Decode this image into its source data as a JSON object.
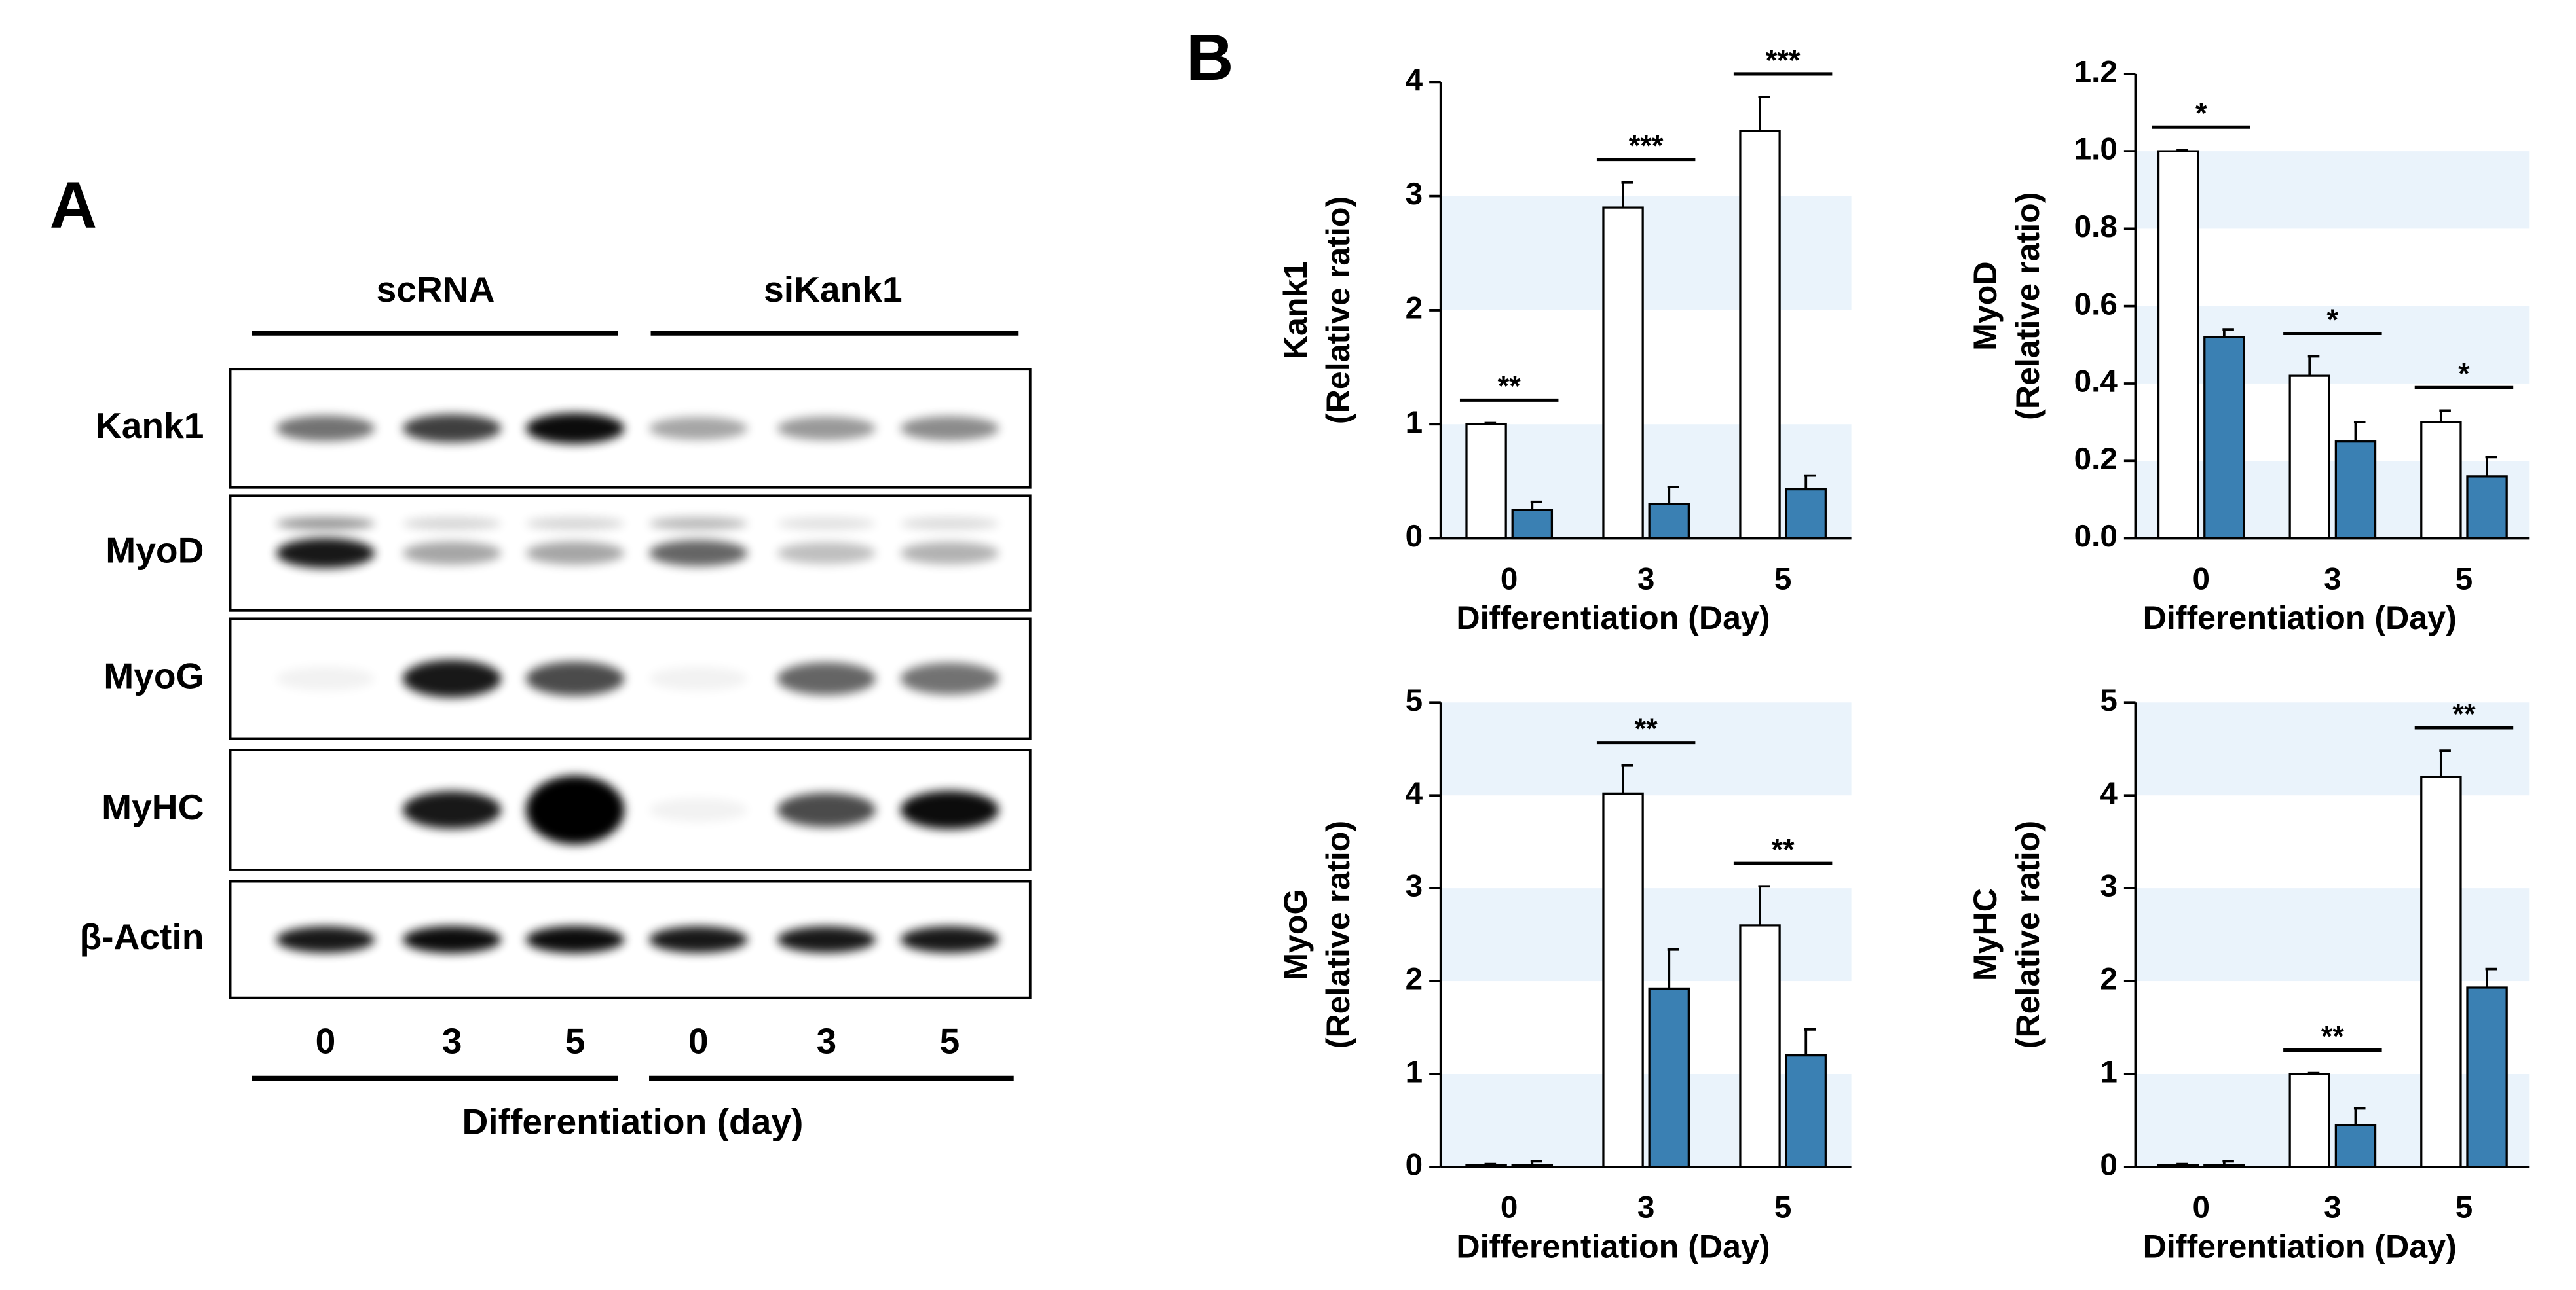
{
  "panels": [
    "A",
    "B"
  ],
  "blot": {
    "groups": [
      "scRNA",
      "siKank1"
    ],
    "rows": [
      "Kank1",
      "MyoD",
      "MyoG",
      "MyHC",
      "β-Actin"
    ],
    "days": [
      "0",
      "3",
      "5",
      "0",
      "3",
      "5"
    ],
    "xlabel": "Differentiation (day)"
  },
  "chart_data": [
    {
      "type": "bar",
      "ylabel": [
        "Kank1",
        "(Relative ratio)"
      ],
      "xlabel": "Differentiation (Day)",
      "categories": [
        "0",
        "3",
        "5"
      ],
      "ylim": [
        0,
        4
      ],
      "yticks": [
        0,
        1,
        2,
        3,
        4
      ],
      "bands": true,
      "band_color": "#eaf3fb",
      "series": [
        {
          "color": "#ffffff",
          "values": [
            1.0,
            2.9,
            3.57
          ],
          "errors": [
            0.01,
            0.22,
            0.3
          ]
        },
        {
          "color": "#3a80b3",
          "values": [
            0.25,
            0.3,
            0.43
          ],
          "errors": [
            0.07,
            0.15,
            0.12
          ]
        }
      ],
      "annotations": [
        {
          "text": "**",
          "category": "0"
        },
        {
          "text": "***",
          "category": "3"
        },
        {
          "text": "***",
          "category": "5"
        }
      ]
    },
    {
      "type": "bar",
      "ylabel": [
        "MyoD",
        "(Relative ratio)"
      ],
      "xlabel": "Differentiation (Day)",
      "categories": [
        "0",
        "3",
        "5"
      ],
      "ylim": [
        0,
        1.2
      ],
      "yticks": [
        {
          "value": 0,
          "label": "0.0"
        },
        0.2,
        0.4,
        0.6,
        0.8,
        {
          "value": 1,
          "label": "1.0"
        },
        1.2
      ],
      "bands": true,
      "band_color": "#eaf3fb",
      "series": [
        {
          "color": "#ffffff",
          "values": [
            1.0,
            0.42,
            0.3
          ],
          "errors": [
            0.003,
            0.05,
            0.03
          ]
        },
        {
          "color": "#3a80b3",
          "values": [
            0.52,
            0.25,
            0.16
          ],
          "errors": [
            0.02,
            0.05,
            0.05
          ]
        }
      ],
      "annotations": [
        {
          "text": "*",
          "category": "0"
        },
        {
          "text": "*",
          "category": "3"
        },
        {
          "text": "*",
          "category": "5"
        }
      ]
    },
    {
      "type": "bar",
      "ylabel": [
        "MyoG",
        "(Relative ratio)"
      ],
      "xlabel": "Differentiation (Day)",
      "categories": [
        "0",
        "3",
        "5"
      ],
      "ylim": [
        0,
        5
      ],
      "yticks": [
        0,
        1,
        2,
        3,
        4,
        5
      ],
      "bands": true,
      "band_color": "#eaf3fb",
      "series": [
        {
          "color": "#ffffff",
          "values": [
            0.02,
            4.02,
            2.6
          ],
          "errors": [
            0.01,
            0.3,
            0.42
          ]
        },
        {
          "color": "#3a80b3",
          "values": [
            0.02,
            1.92,
            1.2
          ],
          "errors": [
            0.04,
            0.42,
            0.28
          ]
        }
      ],
      "annotations": [
        {
          "text": "**",
          "category": "3"
        },
        {
          "text": "**",
          "category": "5"
        }
      ]
    },
    {
      "type": "bar",
      "ylabel": [
        "MyHC",
        "(Relative ratio)"
      ],
      "xlabel": "Differentiation (Day)",
      "categories": [
        "0",
        "3",
        "5"
      ],
      "ylim": [
        0,
        5
      ],
      "yticks": [
        0,
        1,
        2,
        3,
        4,
        5
      ],
      "bands": true,
      "band_color": "#eaf3fb",
      "series": [
        {
          "color": "#ffffff",
          "values": [
            0.02,
            1.0,
            4.2
          ],
          "errors": [
            0.01,
            0.01,
            0.28
          ]
        },
        {
          "color": "#3a80b3",
          "values": [
            0.02,
            0.45,
            1.93
          ],
          "errors": [
            0.04,
            0.18,
            0.2
          ]
        }
      ],
      "annotations": [
        {
          "text": "**",
          "category": "3"
        },
        {
          "text": "**",
          "category": "5"
        }
      ]
    }
  ]
}
